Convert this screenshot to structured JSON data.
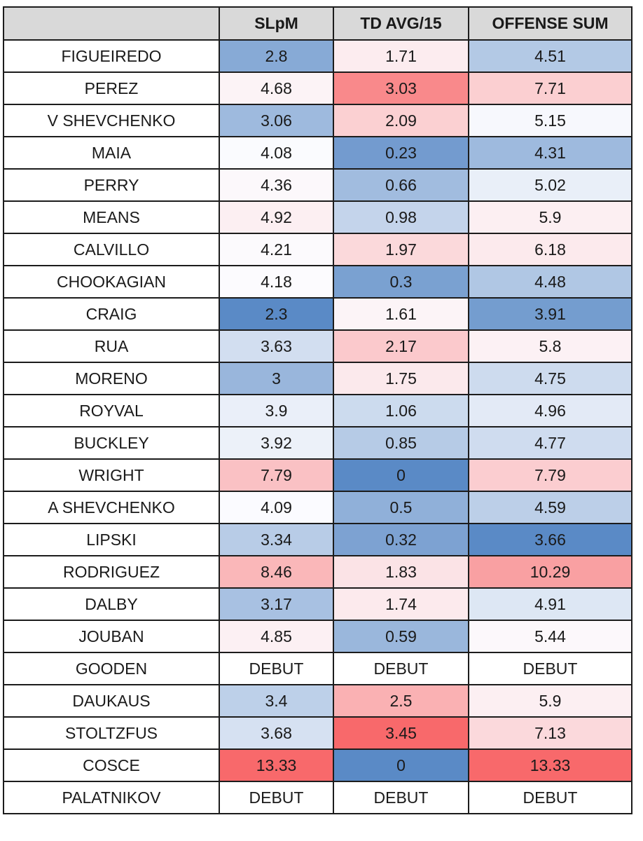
{
  "chart_data": {
    "type": "table",
    "columns": [
      "",
      "SLpM",
      "TD AVG/15",
      "OFFENSE SUM"
    ],
    "rows": [
      {
        "name": "FIGUEIREDO",
        "values": [
          "2.8",
          "1.71",
          "4.51"
        ]
      },
      {
        "name": "PEREZ",
        "values": [
          "4.68",
          "3.03",
          "7.71"
        ]
      },
      {
        "name": "V SHEVCHENKO",
        "values": [
          "3.06",
          "2.09",
          "5.15"
        ]
      },
      {
        "name": "MAIA",
        "values": [
          "4.08",
          "0.23",
          "4.31"
        ]
      },
      {
        "name": "PERRY",
        "values": [
          "4.36",
          "0.66",
          "5.02"
        ]
      },
      {
        "name": "MEANS",
        "values": [
          "4.92",
          "0.98",
          "5.9"
        ]
      },
      {
        "name": "CALVILLO",
        "values": [
          "4.21",
          "1.97",
          "6.18"
        ]
      },
      {
        "name": "CHOOKAGIAN",
        "values": [
          "4.18",
          "0.3",
          "4.48"
        ]
      },
      {
        "name": "CRAIG",
        "values": [
          "2.3",
          "1.61",
          "3.91"
        ]
      },
      {
        "name": "RUA",
        "values": [
          "3.63",
          "2.17",
          "5.8"
        ]
      },
      {
        "name": "MORENO",
        "values": [
          "3",
          "1.75",
          "4.75"
        ]
      },
      {
        "name": "ROYVAL",
        "values": [
          "3.9",
          "1.06",
          "4.96"
        ]
      },
      {
        "name": "BUCKLEY",
        "values": [
          "3.92",
          "0.85",
          "4.77"
        ]
      },
      {
        "name": "WRIGHT",
        "values": [
          "7.79",
          "0",
          "7.79"
        ]
      },
      {
        "name": "A SHEVCHENKO",
        "values": [
          "4.09",
          "0.5",
          "4.59"
        ]
      },
      {
        "name": "LIPSKI",
        "values": [
          "3.34",
          "0.32",
          "3.66"
        ]
      },
      {
        "name": "RODRIGUEZ",
        "values": [
          "8.46",
          "1.83",
          "10.29"
        ]
      },
      {
        "name": "DALBY",
        "values": [
          "3.17",
          "1.74",
          "4.91"
        ]
      },
      {
        "name": "JOUBAN",
        "values": [
          "4.85",
          "0.59",
          "5.44"
        ]
      },
      {
        "name": "GOODEN",
        "values": [
          "DEBUT",
          "DEBUT",
          "DEBUT"
        ]
      },
      {
        "name": "DAUKAUS",
        "values": [
          "3.4",
          "2.5",
          "5.9"
        ]
      },
      {
        "name": "STOLTZFUS",
        "values": [
          "3.68",
          "3.45",
          "7.13"
        ]
      },
      {
        "name": "COSCE",
        "values": [
          "13.33",
          "0",
          "13.33"
        ]
      },
      {
        "name": "PALATNIKOV",
        "values": [
          "DEBUT",
          "DEBUT",
          "DEBUT"
        ]
      }
    ],
    "color_scale": {
      "type": "diverging",
      "low_color": "#5a8ac6",
      "mid_color": "#fcfcff",
      "high_color": "#f8696b",
      "column_mid_values": [
        4.1,
        1.5,
        5.2
      ],
      "header_fill": "#d9d9d9"
    }
  }
}
